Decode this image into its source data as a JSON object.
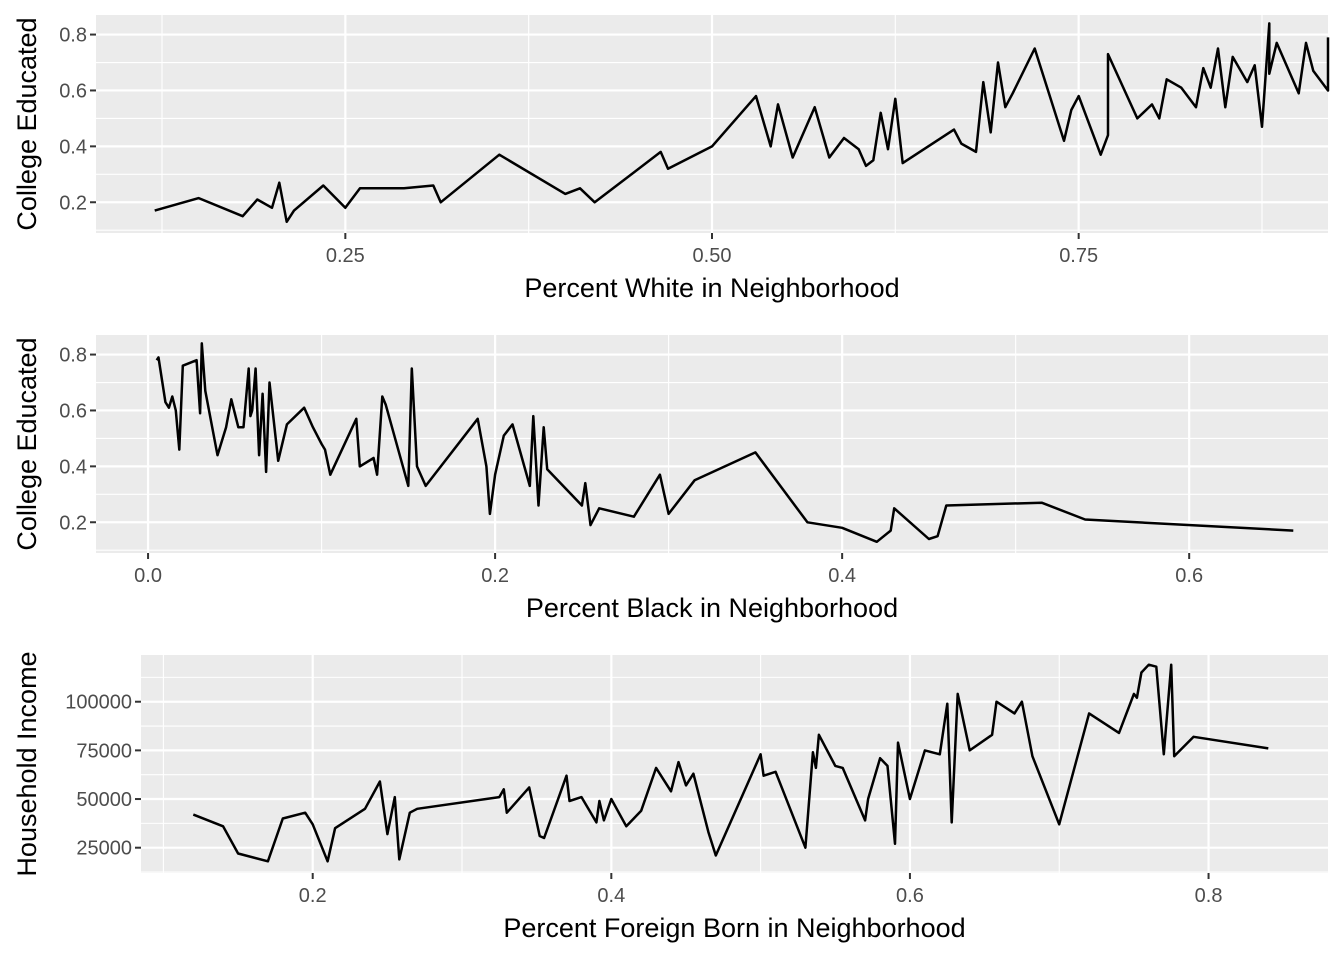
{
  "chart_data": [
    {
      "type": "line",
      "xlabel": "Percent White in Neighborhood",
      "ylabel": "College Educated",
      "xlim": [
        0.08,
        0.92
      ],
      "ylim": [
        0.09,
        0.87
      ],
      "xticks": [
        0.25,
        0.5,
        0.75
      ],
      "xtick_labels": [
        "0.25",
        "0.50",
        "0.75"
      ],
      "yticks": [
        0.2,
        0.4,
        0.6,
        0.8
      ],
      "ytick_labels": [
        "0.2",
        "0.4",
        "0.6",
        "0.8"
      ],
      "grid": true,
      "series": [
        {
          "x": [
            0.12,
            0.15,
            0.18,
            0.19,
            0.2,
            0.205,
            0.21,
            0.215,
            0.235,
            0.25,
            0.26,
            0.29,
            0.31,
            0.315,
            0.355,
            0.4,
            0.41,
            0.42,
            0.465,
            0.47,
            0.5,
            0.53,
            0.54,
            0.545,
            0.555,
            0.57,
            0.58,
            0.59,
            0.6,
            0.605,
            0.61,
            0.615,
            0.62,
            0.625,
            0.63,
            0.665,
            0.67,
            0.68,
            0.685,
            0.69,
            0.695,
            0.7,
            0.705,
            0.72,
            0.74,
            0.745,
            0.75,
            0.765,
            0.77,
            0.77,
            0.79,
            0.8,
            0.805,
            0.81,
            0.82,
            0.83,
            0.835,
            0.84,
            0.845,
            0.85,
            0.855,
            0.865,
            0.87,
            0.875,
            0.88,
            0.88,
            0.885,
            0.9,
            0.905,
            0.91,
            0.92,
            0.92
          ],
          "y": [
            0.17,
            0.215,
            0.15,
            0.21,
            0.18,
            0.27,
            0.13,
            0.17,
            0.26,
            0.18,
            0.25,
            0.25,
            0.26,
            0.2,
            0.37,
            0.23,
            0.25,
            0.2,
            0.38,
            0.32,
            0.4,
            0.58,
            0.4,
            0.55,
            0.36,
            0.54,
            0.36,
            0.43,
            0.39,
            0.33,
            0.35,
            0.52,
            0.39,
            0.57,
            0.34,
            0.46,
            0.41,
            0.38,
            0.63,
            0.45,
            0.7,
            0.54,
            0.59,
            0.75,
            0.42,
            0.53,
            0.58,
            0.37,
            0.44,
            0.73,
            0.5,
            0.55,
            0.5,
            0.64,
            0.61,
            0.54,
            0.68,
            0.61,
            0.75,
            0.54,
            0.72,
            0.63,
            0.69,
            0.47,
            0.84,
            0.66,
            0.77,
            0.59,
            0.77,
            0.67,
            0.6,
            0.79
          ]
        }
      ]
    },
    {
      "type": "line",
      "xlabel": "Percent Black in Neighborhood",
      "ylabel": "College Educated",
      "xlim": [
        -0.03,
        0.68
      ],
      "ylim": [
        0.09,
        0.87
      ],
      "xticks": [
        0.0,
        0.2,
        0.4,
        0.6
      ],
      "xtick_labels": [
        "0.0",
        "0.2",
        "0.4",
        "0.6"
      ],
      "yticks": [
        0.2,
        0.4,
        0.6,
        0.8
      ],
      "ytick_labels": [
        "0.2",
        "0.4",
        "0.6",
        "0.8"
      ],
      "grid": true,
      "series": [
        {
          "x": [
            0.005,
            0.006,
            0.007,
            0.01,
            0.012,
            0.014,
            0.016,
            0.018,
            0.02,
            0.028,
            0.03,
            0.031,
            0.033,
            0.04,
            0.045,
            0.048,
            0.052,
            0.055,
            0.058,
            0.059,
            0.06,
            0.062,
            0.064,
            0.066,
            0.068,
            0.07,
            0.075,
            0.08,
            0.09,
            0.095,
            0.1,
            0.102,
            0.105,
            0.12,
            0.122,
            0.13,
            0.132,
            0.135,
            0.137,
            0.15,
            0.152,
            0.155,
            0.16,
            0.19,
            0.195,
            0.197,
            0.2,
            0.205,
            0.21,
            0.22,
            0.222,
            0.225,
            0.228,
            0.23,
            0.25,
            0.252,
            0.255,
            0.26,
            0.28,
            0.295,
            0.3,
            0.315,
            0.35,
            0.38,
            0.4,
            0.42,
            0.428,
            0.43,
            0.45,
            0.455,
            0.46,
            0.515,
            0.54,
            0.66
          ],
          "y": [
            0.78,
            0.79,
            0.75,
            0.63,
            0.61,
            0.65,
            0.6,
            0.46,
            0.76,
            0.78,
            0.59,
            0.84,
            0.67,
            0.44,
            0.54,
            0.64,
            0.54,
            0.54,
            0.75,
            0.58,
            0.6,
            0.75,
            0.44,
            0.66,
            0.38,
            0.7,
            0.42,
            0.55,
            0.61,
            0.54,
            0.48,
            0.46,
            0.37,
            0.57,
            0.4,
            0.43,
            0.37,
            0.65,
            0.62,
            0.33,
            0.75,
            0.4,
            0.33,
            0.57,
            0.4,
            0.23,
            0.37,
            0.51,
            0.55,
            0.33,
            0.58,
            0.26,
            0.54,
            0.39,
            0.26,
            0.34,
            0.19,
            0.25,
            0.22,
            0.37,
            0.23,
            0.35,
            0.45,
            0.2,
            0.18,
            0.13,
            0.17,
            0.25,
            0.14,
            0.15,
            0.26,
            0.27,
            0.21,
            0.17
          ]
        }
      ]
    },
    {
      "type": "line",
      "xlabel": "Percent Foreign Born in Neighborhood",
      "ylabel": "Household Income",
      "xlim": [
        0.085,
        0.88
      ],
      "ylim": [
        12000,
        124000
      ],
      "xticks": [
        0.2,
        0.4,
        0.6,
        0.8
      ],
      "xtick_labels": [
        "0.2",
        "0.4",
        "0.6",
        "0.8"
      ],
      "yticks": [
        25000,
        50000,
        75000,
        100000
      ],
      "ytick_labels": [
        "25000",
        "50000",
        "75000",
        "100000"
      ],
      "grid": true,
      "series": [
        {
          "x": [
            0.12,
            0.14,
            0.15,
            0.17,
            0.18,
            0.195,
            0.2,
            0.21,
            0.215,
            0.235,
            0.245,
            0.25,
            0.255,
            0.258,
            0.265,
            0.27,
            0.325,
            0.328,
            0.33,
            0.345,
            0.352,
            0.355,
            0.37,
            0.372,
            0.38,
            0.39,
            0.392,
            0.395,
            0.4,
            0.41,
            0.42,
            0.43,
            0.44,
            0.445,
            0.45,
            0.455,
            0.465,
            0.47,
            0.5,
            0.502,
            0.51,
            0.53,
            0.535,
            0.537,
            0.539,
            0.55,
            0.555,
            0.57,
            0.572,
            0.58,
            0.585,
            0.59,
            0.592,
            0.6,
            0.61,
            0.62,
            0.625,
            0.628,
            0.632,
            0.64,
            0.655,
            0.658,
            0.67,
            0.675,
            0.682,
            0.7,
            0.72,
            0.74,
            0.75,
            0.752,
            0.755,
            0.76,
            0.765,
            0.77,
            0.775,
            0.777,
            0.79,
            0.84
          ],
          "y": [
            42000,
            36000,
            22000,
            18000,
            40000,
            43000,
            37000,
            18000,
            35000,
            45000,
            59000,
            32000,
            51000,
            19000,
            43000,
            45000,
            51000,
            55000,
            43000,
            56000,
            31000,
            30000,
            62000,
            49000,
            51000,
            38000,
            49000,
            39000,
            50000,
            36000,
            44000,
            66000,
            54000,
            69000,
            57000,
            63000,
            33000,
            21000,
            73000,
            62000,
            64000,
            25000,
            74000,
            66000,
            83000,
            67000,
            66000,
            39000,
            50000,
            71000,
            67000,
            27000,
            79000,
            50000,
            75000,
            73000,
            99000,
            38000,
            104000,
            75000,
            83000,
            100000,
            94000,
            100000,
            72000,
            37000,
            94000,
            84000,
            104000,
            102000,
            115000,
            119000,
            118000,
            73000,
            119000,
            72000,
            82000,
            76000
          ]
        }
      ]
    }
  ]
}
